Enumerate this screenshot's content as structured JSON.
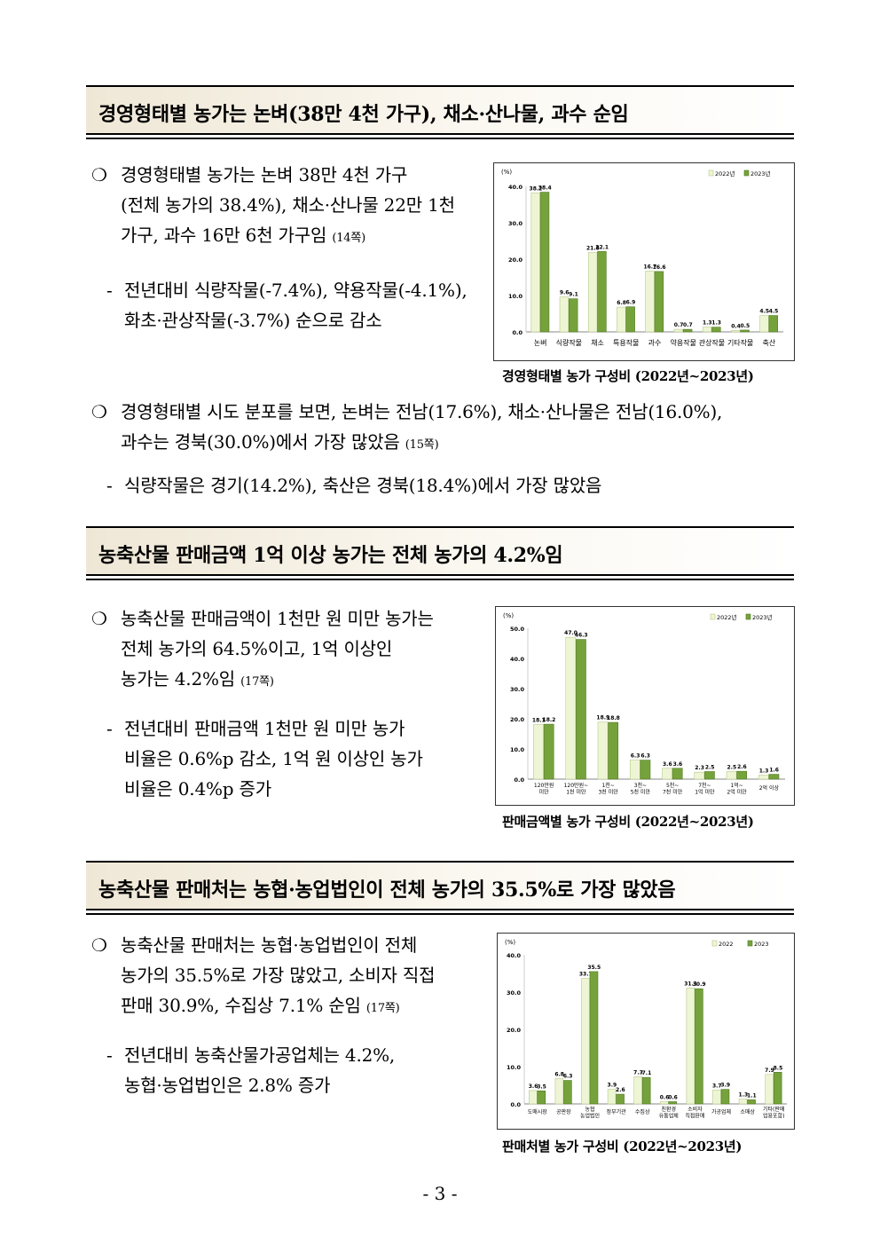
{
  "sections": [
    {
      "title": "경영형태별 농가는 논벼(38만 4천 가구), 채소·산나물, 과수 순임",
      "p1_line1": "경영형태별 농가는 논벼 38만 4천 가구",
      "p1_line2": "(전체 농가의 38.4%), 채소·산나물 22만 1천",
      "p1_line3": "가구, 과수 16만 6천 가구임",
      "p1_ref": "(14쪽)",
      "p2_line1": "전년대비 식량작물(-7.4%), 약용작물(-4.1%),",
      "p2_line2": "화초·관상작물(-3.7%) 순으로 감소",
      "p3_line1": "경영형태별 시도 분포를 보면, 논벼는 전남(17.6%), 채소·산나물은 전남(16.0%),",
      "p3_line2": "과수는 경북(30.0%)에서 가장 많았음",
      "p3_ref": "(15쪽)",
      "p4_line1": "식량작물은 경기(14.2%), 축산은 경북(18.4%)에서 가장 많았음",
      "caption": "경영형태별 농가 구성비 (2022년~2023년)"
    },
    {
      "title": "농축산물 판매금액 1억 이상 농가는 전체 농가의 4.2%임",
      "p1_line1": "농축산물 판매금액이 1천만 원 미만 농가는",
      "p1_line2": "전체 농가의 64.5%이고, 1억 이상인",
      "p1_line3": "농가는 4.2%임",
      "p1_ref": "(17쪽)",
      "p2_line1": "전년대비 판매금액 1천만 원 미만 농가",
      "p2_line2": "비율은 0.6%p 감소, 1억 원 이상인 농가",
      "p2_line3": "비율은 0.4%p 증가",
      "caption": "판매금액별 농가 구성비 (2022년~2023년)"
    },
    {
      "title": "농축산물 판매처는 농협·농업법인이 전체 농가의 35.5%로 가장 많았음",
      "p1_line1": "농축산물 판매처는 농협·농업법인이 전체",
      "p1_line2": "농가의 35.5%로 가장 많았고, 소비자 직접",
      "p1_line3": "판매 30.9%, 수집상 7.1% 순임",
      "p1_ref": "(17쪽)",
      "p2_line1": "전년대비 농축산물가공업체는 4.2%,",
      "p2_line2": "농협·농업법인은 2.8% 증가",
      "caption": "판매처별 농가 구성비 (2022년~2023년)"
    }
  ],
  "bullet_symbol": "❍",
  "dash_symbol": "-",
  "page_number": "- 3 -",
  "colors": {
    "series_2022": "#eef5d4",
    "series_2022_stroke": "#b6c98a",
    "series_2023": "#76a23c",
    "series_2023_stroke": "#4f7a22"
  },
  "chart_data": [
    {
      "type": "bar",
      "unit_label": "(%)",
      "categories": [
        "논벼",
        "식량작물",
        "채소",
        "특용작물",
        "과수",
        "약용작물",
        "관상작물",
        "기타작물",
        "축산"
      ],
      "series": [
        {
          "name": "2022년",
          "values": [
            38.2,
            9.6,
            21.8,
            6.8,
            16.7,
            0.7,
            1.3,
            0.4,
            4.5
          ]
        },
        {
          "name": "2023년",
          "values": [
            38.4,
            9.1,
            22.1,
            6.9,
            16.6,
            0.7,
            1.3,
            0.5,
            4.5
          ]
        }
      ],
      "yticks": [
        "0.0",
        "10.0",
        "20.0",
        "30.0",
        "40.0"
      ],
      "ylim": [
        0,
        40
      ],
      "legend": "top-right"
    },
    {
      "type": "bar",
      "unit_label": "(%)",
      "categories": [
        [
          "120만원",
          "미만"
        ],
        [
          "120만원~",
          "1천 미만"
        ],
        [
          "1천~",
          "3천 미만"
        ],
        [
          "3천~",
          "5천 미만"
        ],
        [
          "5천~",
          "7천 미만"
        ],
        [
          "7천~",
          "1억 미만"
        ],
        [
          "1억~",
          "2억 미만"
        ],
        [
          "2억 이상"
        ]
      ],
      "series": [
        {
          "name": "2022년",
          "values": [
            18.1,
            47.0,
            18.9,
            6.3,
            3.6,
            2.3,
            2.5,
            1.3
          ]
        },
        {
          "name": "2023년",
          "values": [
            18.2,
            46.3,
            18.8,
            6.3,
            3.6,
            2.5,
            2.6,
            1.6
          ]
        }
      ],
      "yticks": [
        "0.0",
        "10.0",
        "20.0",
        "30.0",
        "40.0",
        "50.0"
      ],
      "ylim": [
        0,
        50
      ],
      "legend": "top-right"
    },
    {
      "type": "bar",
      "unit_label": "(%)",
      "categories": [
        [
          "도매시장"
        ],
        [
          "공판장"
        ],
        [
          "농협",
          "농업법인"
        ],
        [
          "정부기관"
        ],
        [
          "수집상"
        ],
        [
          "친환경",
          "유통업체"
        ],
        [
          "소비자",
          "직접판매"
        ],
        [
          "가공업체"
        ],
        [
          "소매상"
        ],
        [
          "기타(판매",
          "업용포함)"
        ]
      ],
      "series": [
        {
          "name": "2022",
          "values": [
            3.6,
            6.8,
            33.7,
            3.9,
            7.3,
            0.6,
            31.1,
            3.7,
            1.3,
            7.9
          ]
        },
        {
          "name": "2023",
          "values": [
            3.5,
            6.3,
            35.5,
            2.6,
            7.1,
            0.6,
            30.9,
            3.9,
            1.1,
            8.5
          ]
        }
      ],
      "yticks": [
        "0.0",
        "10.0",
        "20.0",
        "30.0",
        "40.0"
      ],
      "ylim": [
        0,
        40
      ],
      "legend": "top-right"
    }
  ]
}
